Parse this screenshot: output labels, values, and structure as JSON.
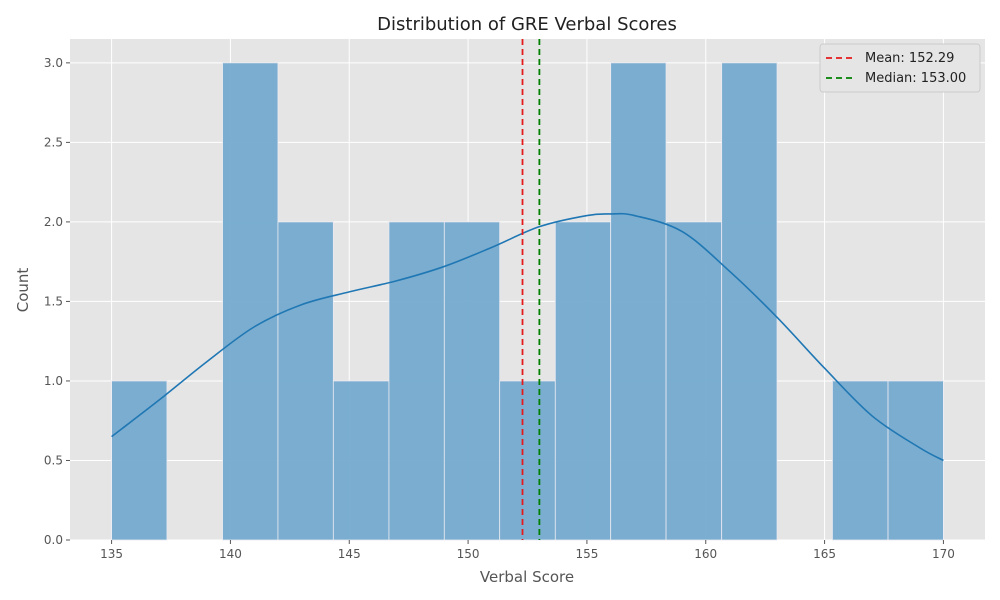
{
  "chart_data": {
    "type": "histogram",
    "title": "Distribution of GRE Verbal Scores",
    "xlabel": "Verbal Score",
    "ylabel": "Count",
    "xlim": [
      133.25,
      171.75
    ],
    "ylim": [
      0,
      3.15
    ],
    "xticks": [
      135,
      140,
      145,
      150,
      155,
      160,
      165,
      170
    ],
    "xtick_labels": [
      "135",
      "140",
      "145",
      "150",
      "155",
      "160",
      "165",
      "170"
    ],
    "yticks": [
      0,
      0.5,
      1.0,
      1.5,
      2.0,
      2.5,
      3.0
    ],
    "ytick_labels": [
      "0.0",
      "0.5",
      "1.0",
      "1.5",
      "2.0",
      "2.5",
      "3.0"
    ],
    "bins": [
      {
        "x0": 135.0,
        "x1": 137.33,
        "count": 1
      },
      {
        "x0": 137.33,
        "x1": 139.67,
        "count": 0
      },
      {
        "x0": 139.67,
        "x1": 142.0,
        "count": 3
      },
      {
        "x0": 142.0,
        "x1": 144.33,
        "count": 2
      },
      {
        "x0": 144.33,
        "x1": 146.67,
        "count": 1
      },
      {
        "x0": 146.67,
        "x1": 149.0,
        "count": 2
      },
      {
        "x0": 149.0,
        "x1": 151.33,
        "count": 2
      },
      {
        "x0": 151.33,
        "x1": 153.67,
        "count": 1
      },
      {
        "x0": 153.67,
        "x1": 156.0,
        "count": 2
      },
      {
        "x0": 156.0,
        "x1": 158.33,
        "count": 3
      },
      {
        "x0": 158.33,
        "x1": 160.67,
        "count": 2
      },
      {
        "x0": 160.67,
        "x1": 163.0,
        "count": 3
      },
      {
        "x0": 163.0,
        "x1": 165.33,
        "count": 0
      },
      {
        "x0": 165.33,
        "x1": 167.67,
        "count": 1
      },
      {
        "x0": 167.67,
        "x1": 170.0,
        "count": 1
      }
    ],
    "kde": {
      "x": [
        135,
        137,
        139,
        141,
        143,
        145,
        147,
        149,
        151,
        153,
        155,
        156,
        157,
        159,
        161,
        163,
        165,
        167,
        169,
        170
      ],
      "y": [
        0.65,
        0.88,
        1.12,
        1.34,
        1.48,
        1.56,
        1.63,
        1.72,
        1.84,
        1.97,
        2.04,
        2.05,
        2.04,
        1.94,
        1.69,
        1.4,
        1.08,
        0.78,
        0.58,
        0.5
      ]
    },
    "lines": [
      {
        "label": "Mean: 152.29",
        "x": 152.29,
        "color": "#e41a1c",
        "style": "dashed"
      },
      {
        "label": "Median: 153.00",
        "x": 153.0,
        "color": "#008000",
        "style": "dashed"
      }
    ],
    "colors": {
      "bar_fill": "#74aacd",
      "bar_edge": "#eaeaf2",
      "kde": "#1f77b4",
      "plot_bg": "#e5e5e5",
      "grid": "#ffffff"
    },
    "grid": true,
    "legend_position": "top-right"
  }
}
